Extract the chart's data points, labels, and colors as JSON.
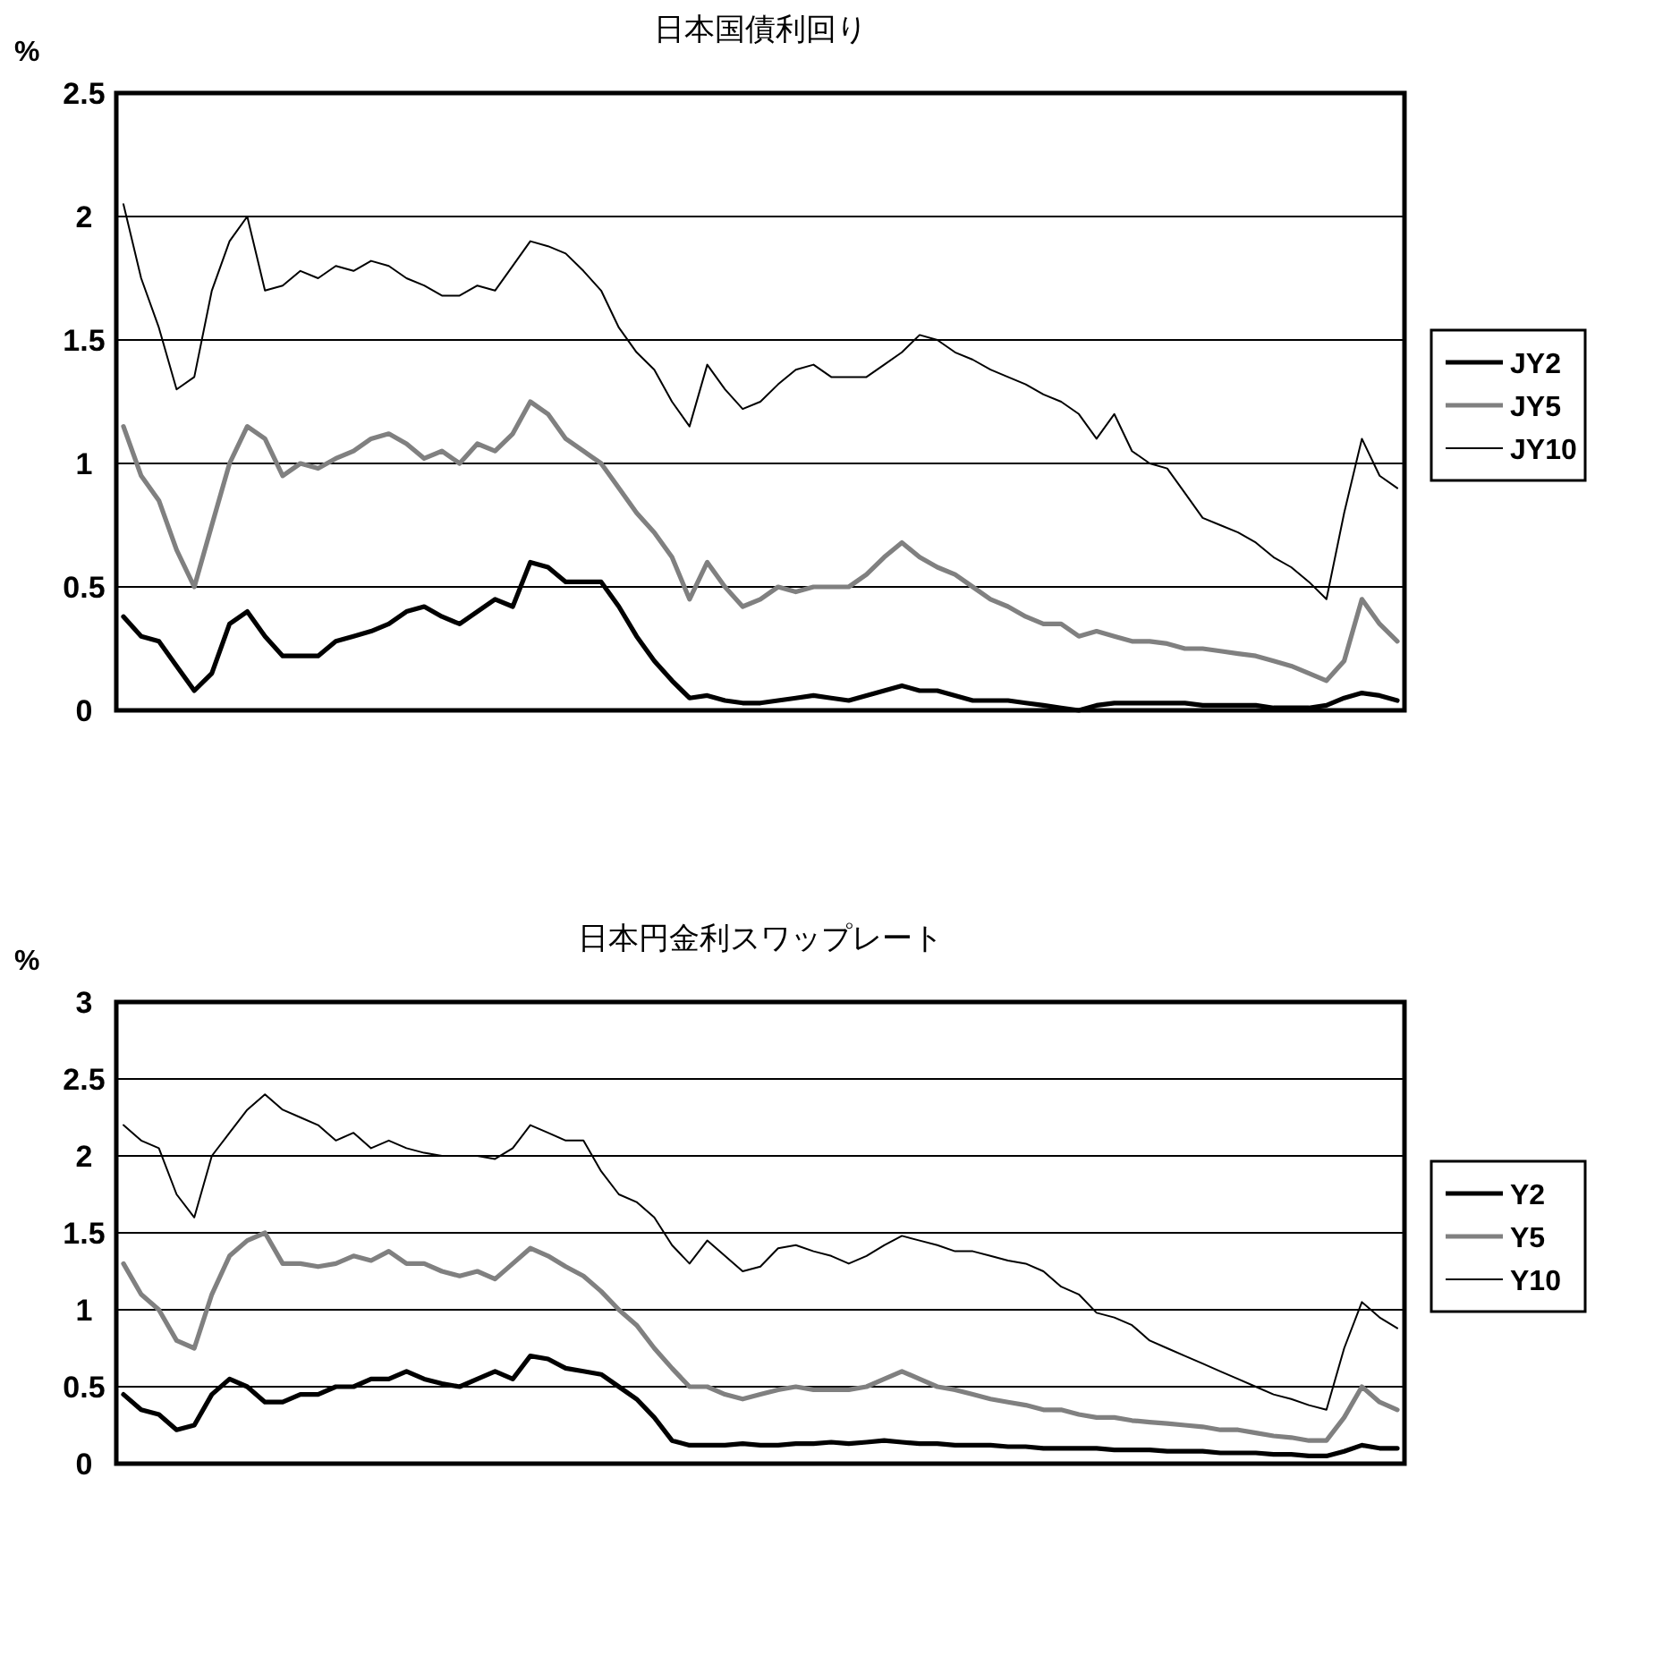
{
  "chart_data": [
    {
      "type": "line",
      "title": "日本国債利回り",
      "ylabel": "%",
      "ylim": [
        0,
        2.5
      ],
      "yticks": [
        0,
        0.5,
        1,
        1.5,
        2,
        2.5
      ],
      "grid": "y",
      "legend": "right",
      "tick_labels": "y",
      "marker": "none",
      "categories": [
        null,
        null,
        null,
        null,
        null,
        null,
        null,
        null,
        null,
        null,
        null,
        null,
        null,
        null,
        null,
        null,
        null,
        null,
        null,
        null,
        null,
        null,
        null,
        null,
        null,
        null,
        null,
        null,
        null,
        null,
        null,
        null,
        null,
        null,
        null,
        null,
        null,
        null,
        null,
        null,
        null,
        null,
        null,
        null,
        null,
        null,
        null,
        null,
        null,
        null,
        null,
        null,
        null,
        null,
        null,
        null,
        null,
        null,
        null,
        null,
        null,
        null,
        null,
        null,
        null,
        null,
        null,
        null,
        null,
        null,
        null,
        null,
        null
      ],
      "series": [
        {
          "name": "JY2",
          "color": "#000000",
          "values": [
            0.38,
            0.3,
            0.28,
            0.18,
            0.08,
            0.15,
            0.35,
            0.4,
            0.3,
            0.22,
            0.22,
            0.22,
            0.28,
            0.3,
            0.32,
            0.35,
            0.4,
            0.42,
            0.38,
            0.35,
            0.4,
            0.45,
            0.42,
            0.6,
            0.58,
            0.52,
            0.52,
            0.52,
            0.42,
            0.3,
            0.2,
            0.12,
            0.05,
            0.06,
            0.04,
            0.03,
            0.03,
            0.04,
            0.05,
            0.06,
            0.05,
            0.04,
            0.06,
            0.08,
            0.1,
            0.08,
            0.08,
            0.06,
            0.04,
            0.04,
            0.04,
            0.03,
            0.02,
            0.01,
            0.0,
            0.02,
            0.03,
            0.03,
            0.03,
            0.03,
            0.03,
            0.02,
            0.02,
            0.02,
            0.02,
            0.01,
            0.01,
            0.01,
            0.02,
            0.05,
            0.07,
            0.06,
            0.04
          ]
        },
        {
          "name": "JY5",
          "color": "#808080",
          "values": [
            1.15,
            0.95,
            0.85,
            0.65,
            0.5,
            0.75,
            1.0,
            1.15,
            1.1,
            0.95,
            1.0,
            0.98,
            1.02,
            1.05,
            1.1,
            1.12,
            1.08,
            1.02,
            1.05,
            1.0,
            1.08,
            1.05,
            1.12,
            1.25,
            1.2,
            1.1,
            1.05,
            1.0,
            0.9,
            0.8,
            0.72,
            0.62,
            0.45,
            0.6,
            0.5,
            0.42,
            0.45,
            0.5,
            0.48,
            0.5,
            0.5,
            0.5,
            0.55,
            0.62,
            0.68,
            0.62,
            0.58,
            0.55,
            0.5,
            0.45,
            0.42,
            0.38,
            0.35,
            0.35,
            0.3,
            0.32,
            0.3,
            0.28,
            0.28,
            0.27,
            0.25,
            0.25,
            0.24,
            0.23,
            0.22,
            0.2,
            0.18,
            0.15,
            0.12,
            0.2,
            0.45,
            0.35,
            0.28
          ]
        },
        {
          "name": "JY10",
          "color": "#000000",
          "values": [
            2.05,
            1.75,
            1.55,
            1.3,
            1.35,
            1.7,
            1.9,
            2.0,
            1.7,
            1.72,
            1.78,
            1.75,
            1.8,
            1.78,
            1.82,
            1.8,
            1.75,
            1.72,
            1.68,
            1.68,
            1.72,
            1.7,
            1.8,
            1.9,
            1.88,
            1.85,
            1.78,
            1.7,
            1.55,
            1.45,
            1.38,
            1.25,
            1.15,
            1.4,
            1.3,
            1.22,
            1.25,
            1.32,
            1.38,
            1.4,
            1.35,
            1.35,
            1.35,
            1.4,
            1.45,
            1.52,
            1.5,
            1.45,
            1.42,
            1.38,
            1.35,
            1.32,
            1.28,
            1.25,
            1.2,
            1.1,
            1.2,
            1.05,
            1.0,
            0.98,
            0.88,
            0.78,
            0.75,
            0.72,
            0.68,
            0.62,
            0.58,
            0.52,
            0.45,
            0.8,
            1.1,
            0.95,
            0.9
          ]
        }
      ]
    },
    {
      "type": "line",
      "title": "日本円金利スワップレート",
      "ylabel": "%",
      "ylim": [
        0,
        3
      ],
      "yticks": [
        0,
        0.5,
        1,
        1.5,
        2,
        2.5,
        3
      ],
      "grid": "y",
      "legend": "right",
      "tick_labels": "y",
      "marker": "none",
      "categories": [
        null,
        null,
        null,
        null,
        null,
        null,
        null,
        null,
        null,
        null,
        null,
        null,
        null,
        null,
        null,
        null,
        null,
        null,
        null,
        null,
        null,
        null,
        null,
        null,
        null,
        null,
        null,
        null,
        null,
        null,
        null,
        null,
        null,
        null,
        null,
        null,
        null,
        null,
        null,
        null,
        null,
        null,
        null,
        null,
        null,
        null,
        null,
        null,
        null,
        null,
        null,
        null,
        null,
        null,
        null,
        null,
        null,
        null,
        null,
        null,
        null,
        null,
        null,
        null,
        null,
        null,
        null,
        null,
        null,
        null,
        null,
        null,
        null
      ],
      "series": [
        {
          "name": "Y2",
          "color": "#000000",
          "values": [
            0.45,
            0.35,
            0.32,
            0.22,
            0.25,
            0.45,
            0.55,
            0.5,
            0.4,
            0.4,
            0.45,
            0.45,
            0.5,
            0.5,
            0.55,
            0.55,
            0.6,
            0.55,
            0.52,
            0.5,
            0.55,
            0.6,
            0.55,
            0.7,
            0.68,
            0.62,
            0.6,
            0.58,
            0.5,
            0.42,
            0.3,
            0.15,
            0.12,
            0.12,
            0.12,
            0.13,
            0.12,
            0.12,
            0.13,
            0.13,
            0.14,
            0.13,
            0.14,
            0.15,
            0.14,
            0.13,
            0.13,
            0.12,
            0.12,
            0.12,
            0.11,
            0.11,
            0.1,
            0.1,
            0.1,
            0.1,
            0.09,
            0.09,
            0.09,
            0.08,
            0.08,
            0.08,
            0.07,
            0.07,
            0.07,
            0.06,
            0.06,
            0.05,
            0.05,
            0.08,
            0.12,
            0.1,
            0.1
          ]
        },
        {
          "name": "Y5",
          "color": "#808080",
          "values": [
            1.3,
            1.1,
            1.0,
            0.8,
            0.75,
            1.1,
            1.35,
            1.45,
            1.5,
            1.3,
            1.3,
            1.28,
            1.3,
            1.35,
            1.32,
            1.38,
            1.3,
            1.3,
            1.25,
            1.22,
            1.25,
            1.2,
            1.3,
            1.4,
            1.35,
            1.28,
            1.22,
            1.12,
            1.0,
            0.9,
            0.75,
            0.62,
            0.5,
            0.5,
            0.45,
            0.42,
            0.45,
            0.48,
            0.5,
            0.48,
            0.48,
            0.48,
            0.5,
            0.55,
            0.6,
            0.55,
            0.5,
            0.48,
            0.45,
            0.42,
            0.4,
            0.38,
            0.35,
            0.35,
            0.32,
            0.3,
            0.3,
            0.28,
            0.27,
            0.26,
            0.25,
            0.24,
            0.22,
            0.22,
            0.2,
            0.18,
            0.17,
            0.15,
            0.15,
            0.3,
            0.5,
            0.4,
            0.35
          ]
        },
        {
          "name": "Y10",
          "color": "#000000",
          "values": [
            2.2,
            2.1,
            2.05,
            1.75,
            1.6,
            2.0,
            2.15,
            2.3,
            2.4,
            2.3,
            2.25,
            2.2,
            2.1,
            2.15,
            2.05,
            2.1,
            2.05,
            2.02,
            2.0,
            2.0,
            2.0,
            1.98,
            2.05,
            2.2,
            2.15,
            2.1,
            2.1,
            1.9,
            1.75,
            1.7,
            1.6,
            1.42,
            1.3,
            1.45,
            1.35,
            1.25,
            1.28,
            1.4,
            1.42,
            1.38,
            1.35,
            1.3,
            1.35,
            1.42,
            1.48,
            1.45,
            1.42,
            1.38,
            1.38,
            1.35,
            1.32,
            1.3,
            1.25,
            1.15,
            1.1,
            0.98,
            0.95,
            0.9,
            0.8,
            0.75,
            0.7,
            0.65,
            0.6,
            0.55,
            0.5,
            0.45,
            0.42,
            0.38,
            0.35,
            0.75,
            1.05,
            0.95,
            0.88
          ]
        }
      ]
    }
  ]
}
